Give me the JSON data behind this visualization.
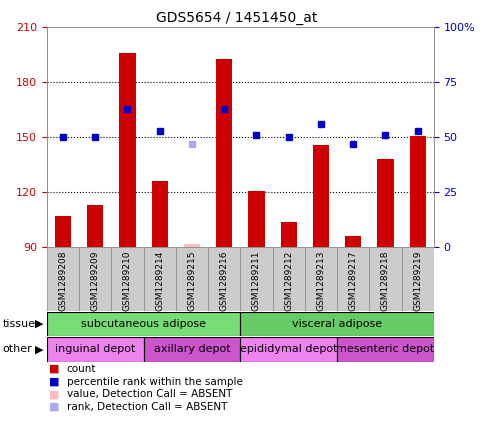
{
  "title": "GDS5654 / 1451450_at",
  "samples": [
    "GSM1289208",
    "GSM1289209",
    "GSM1289210",
    "GSM1289214",
    "GSM1289215",
    "GSM1289216",
    "GSM1289211",
    "GSM1289212",
    "GSM1289213",
    "GSM1289217",
    "GSM1289218",
    "GSM1289219"
  ],
  "bar_values": [
    107,
    113,
    196,
    126,
    92,
    193,
    121,
    104,
    146,
    96,
    138,
    151
  ],
  "bar_absent": [
    false,
    false,
    false,
    false,
    true,
    false,
    false,
    false,
    false,
    false,
    false,
    false
  ],
  "dot_values": [
    50,
    50,
    63,
    53,
    47,
    63,
    51,
    50,
    56,
    47,
    51,
    53
  ],
  "dot_absent": [
    false,
    false,
    false,
    false,
    true,
    false,
    false,
    false,
    false,
    false,
    false,
    false
  ],
  "ymin": 90,
  "ymax": 210,
  "yticks": [
    90,
    120,
    150,
    180,
    210
  ],
  "y2min": 0,
  "y2max": 100,
  "y2ticks": [
    0,
    25,
    50,
    75,
    100
  ],
  "bar_color": "#cc0000",
  "bar_absent_color": "#ffbbbb",
  "dot_color": "#0000cc",
  "dot_absent_color": "#aaaaee",
  "tissue_row": [
    {
      "label": "subcutaneous adipose",
      "start": 0,
      "end": 6,
      "color": "#77dd77"
    },
    {
      "label": "visceral adipose",
      "start": 6,
      "end": 12,
      "color": "#66cc66"
    }
  ],
  "other_row": [
    {
      "label": "inguinal depot",
      "start": 0,
      "end": 3,
      "color": "#ee82ee"
    },
    {
      "label": "axillary depot",
      "start": 3,
      "end": 6,
      "color": "#cc55cc"
    },
    {
      "label": "epididymal depot",
      "start": 6,
      "end": 9,
      "color": "#ee82ee"
    },
    {
      "label": "mesenteric depot",
      "start": 9,
      "end": 12,
      "color": "#cc55cc"
    }
  ],
  "legend_items": [
    {
      "color": "#cc0000",
      "label": "count"
    },
    {
      "color": "#0000cc",
      "label": "percentile rank within the sample"
    },
    {
      "color": "#ffbbbb",
      "label": "value, Detection Call = ABSENT"
    },
    {
      "color": "#aaaaee",
      "label": "rank, Detection Call = ABSENT"
    }
  ],
  "sample_box_color": "#cccccc",
  "sample_box_edge": "#888888"
}
